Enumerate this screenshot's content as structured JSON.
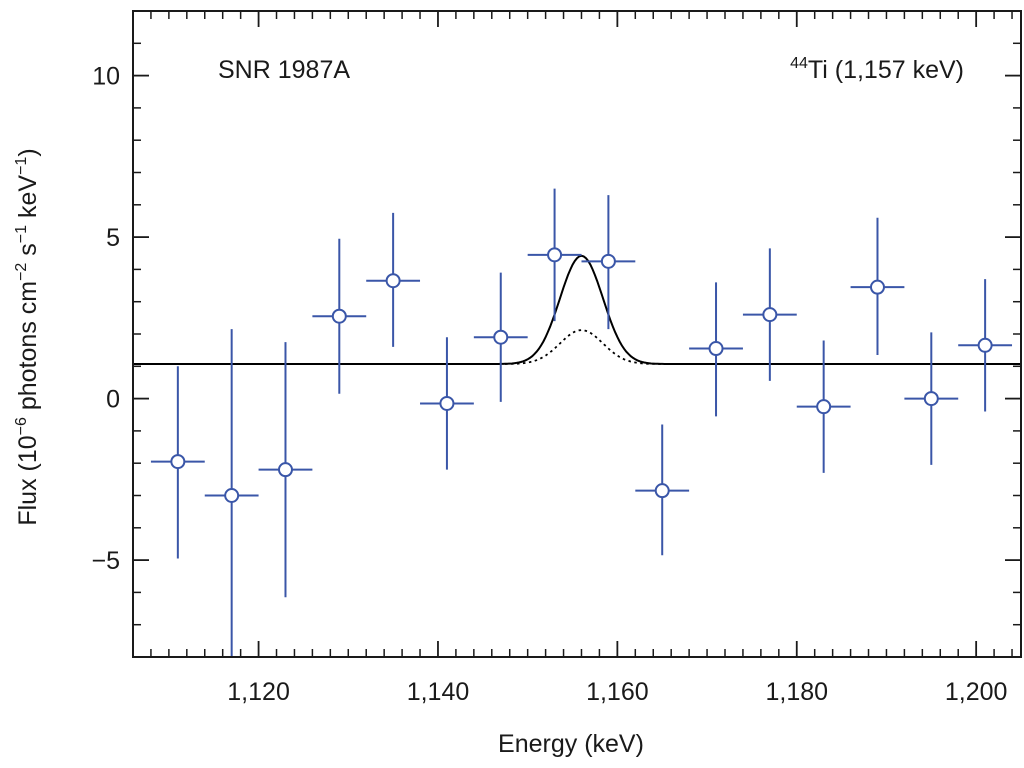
{
  "chart_data": {
    "type": "scatter",
    "annotations": {
      "left": "SNR 1987A",
      "right_sup": "44",
      "right_main": "Ti (1,157 keV)"
    },
    "xlabel": "Energy (keV)",
    "ylabel": {
      "p1": "Flux (10",
      "s1": "−6",
      "p2": " photons cm",
      "s2": "−2",
      "p3": " s",
      "s3": "−1",
      "p4": " keV",
      "s4": "−1",
      "p5": ")"
    },
    "xlim": [
      1106,
      1205
    ],
    "ylim": [
      -8,
      12
    ],
    "x_ticks": [
      {
        "value": 1120,
        "label": "1,120"
      },
      {
        "value": 1140,
        "label": "1,140"
      },
      {
        "value": 1160,
        "label": "1,160"
      },
      {
        "value": 1180,
        "label": "1,180"
      },
      {
        "value": 1200,
        "label": "1,200"
      }
    ],
    "y_ticks": [
      {
        "value": 10,
        "label": "10"
      },
      {
        "value": 5,
        "label": "5"
      },
      {
        "value": 0,
        "label": "0"
      },
      {
        "value": -5,
        "label": "−5"
      }
    ],
    "x_minor_step": 2,
    "y_minor_step": 1,
    "series": [
      {
        "marker": "open-circle",
        "color": "#3a56a8",
        "x_halfwidth": 3,
        "points": [
          {
            "x": 1111,
            "y": -1.95,
            "ylo": -4.95,
            "yhi": 1.0
          },
          {
            "x": 1117,
            "y": -3.0,
            "ylo": -8.0,
            "yhi": 2.15
          },
          {
            "x": 1123,
            "y": -2.2,
            "ylo": -6.15,
            "yhi": 1.75
          },
          {
            "x": 1129,
            "y": 2.55,
            "ylo": 0.15,
            "yhi": 4.95
          },
          {
            "x": 1135,
            "y": 3.65,
            "ylo": 1.6,
            "yhi": 5.75
          },
          {
            "x": 1141,
            "y": -0.15,
            "ylo": -2.2,
            "yhi": 1.9
          },
          {
            "x": 1147,
            "y": 1.9,
            "ylo": -0.1,
            "yhi": 3.9
          },
          {
            "x": 1153,
            "y": 4.45,
            "ylo": 2.4,
            "yhi": 6.5
          },
          {
            "x": 1159,
            "y": 4.25,
            "ylo": 2.15,
            "yhi": 6.3
          },
          {
            "x": 1165,
            "y": -2.85,
            "ylo": -4.85,
            "yhi": -0.8
          },
          {
            "x": 1171,
            "y": 1.55,
            "ylo": -0.55,
            "yhi": 3.6
          },
          {
            "x": 1177,
            "y": 2.6,
            "ylo": 0.55,
            "yhi": 4.65
          },
          {
            "x": 1183,
            "y": -0.25,
            "ylo": -2.3,
            "yhi": 1.8
          },
          {
            "x": 1189,
            "y": 3.45,
            "ylo": 1.35,
            "yhi": 5.6
          },
          {
            "x": 1195,
            "y": 0.0,
            "ylo": -2.05,
            "yhi": 2.05
          },
          {
            "x": 1201,
            "y": 1.65,
            "ylo": -0.4,
            "yhi": 3.7
          }
        ]
      }
    ],
    "model": {
      "baseline": 1.07,
      "line_center": 1156,
      "line_sigma": 2.4,
      "solid_amplitude": 3.35,
      "dotted_amplitude": 1.05,
      "color": "#000000"
    }
  }
}
